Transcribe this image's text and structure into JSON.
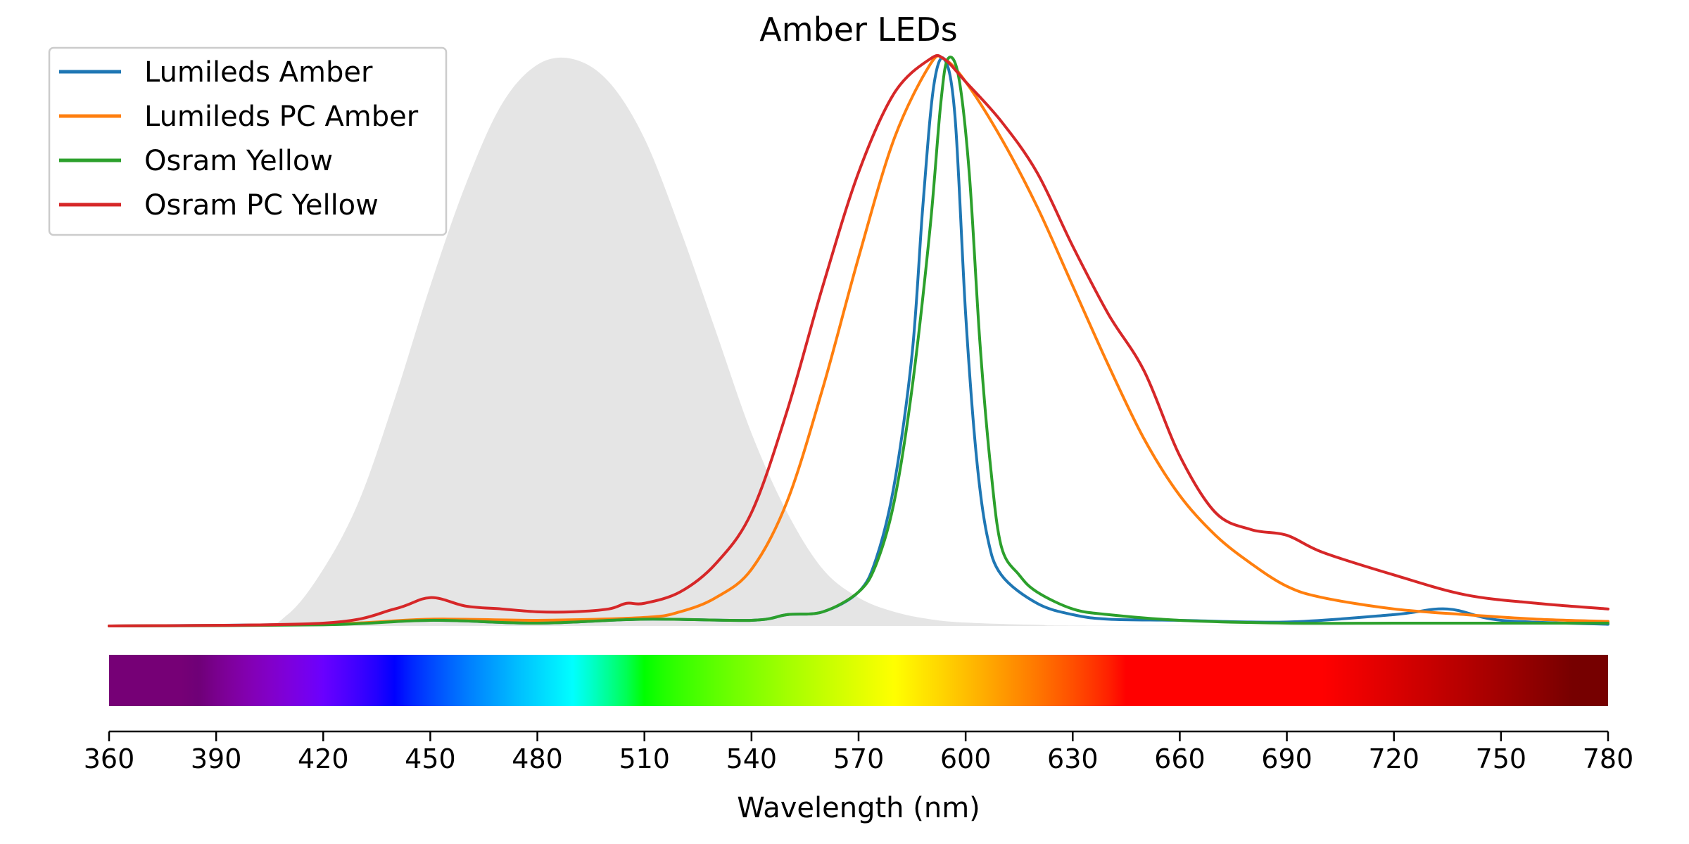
{
  "chart_data": {
    "type": "line",
    "title": "Amber LEDs",
    "xlabel": "Wavelength (nm)",
    "ylabel": "",
    "xlim": [
      360,
      780
    ],
    "ylim": [
      0,
      1
    ],
    "xticks": [
      360,
      390,
      420,
      450,
      480,
      510,
      540,
      570,
      600,
      630,
      660,
      690,
      720,
      750,
      780
    ],
    "grid": false,
    "legend_position": "top-left",
    "background_area": {
      "color": "#e5e5e5",
      "x": [
        360,
        400,
        410,
        420,
        430,
        440,
        450,
        460,
        470,
        480,
        490,
        500,
        510,
        520,
        530,
        540,
        550,
        560,
        570,
        580,
        590,
        600,
        620,
        640,
        780
      ],
      "values": [
        0.0,
        0.0,
        0.02,
        0.1,
        0.22,
        0.4,
        0.6,
        0.78,
        0.92,
        0.99,
        1.0,
        0.96,
        0.86,
        0.7,
        0.52,
        0.34,
        0.2,
        0.1,
        0.05,
        0.025,
        0.012,
        0.006,
        0.002,
        0.0005,
        0.0
      ]
    },
    "series": [
      {
        "name": "Lumileds Amber",
        "color": "#1f77b4",
        "x": [
          360,
          420,
          450,
          480,
          510,
          540,
          550,
          560,
          570,
          575,
          580,
          585,
          588,
          591,
          594,
          597,
          600,
          603,
          606,
          610,
          620,
          630,
          640,
          660,
          690,
          720,
          735,
          750,
          780
        ],
        "values": [
          0.0,
          0.003,
          0.01,
          0.005,
          0.012,
          0.01,
          0.02,
          0.025,
          0.06,
          0.12,
          0.25,
          0.48,
          0.74,
          0.95,
          1.0,
          0.9,
          0.55,
          0.3,
          0.16,
          0.09,
          0.04,
          0.02,
          0.012,
          0.01,
          0.007,
          0.02,
          0.03,
          0.01,
          0.003
        ]
      },
      {
        "name": "Lumileds PC Amber",
        "color": "#ff7f0e",
        "x": [
          360,
          420,
          450,
          480,
          510,
          520,
          530,
          540,
          550,
          560,
          570,
          580,
          590,
          594,
          600,
          610,
          620,
          630,
          640,
          650,
          660,
          670,
          680,
          690,
          700,
          720,
          740,
          760,
          780
        ],
        "values": [
          0.0,
          0.003,
          0.012,
          0.01,
          0.015,
          0.025,
          0.05,
          0.1,
          0.22,
          0.42,
          0.65,
          0.86,
          0.99,
          1.0,
          0.96,
          0.86,
          0.74,
          0.6,
          0.46,
          0.33,
          0.23,
          0.16,
          0.11,
          0.07,
          0.05,
          0.03,
          0.02,
          0.012,
          0.008
        ]
      },
      {
        "name": "Osram Yellow",
        "color": "#2ca02c",
        "x": [
          360,
          420,
          450,
          480,
          510,
          540,
          550,
          560,
          570,
          575,
          580,
          585,
          590,
          593,
          595,
          598,
          601,
          604,
          607,
          610,
          615,
          620,
          630,
          640,
          660,
          690,
          720,
          750,
          780
        ],
        "values": [
          0.0,
          0.002,
          0.01,
          0.005,
          0.012,
          0.01,
          0.02,
          0.025,
          0.06,
          0.11,
          0.22,
          0.42,
          0.7,
          0.92,
          1.0,
          0.97,
          0.8,
          0.5,
          0.28,
          0.14,
          0.09,
          0.06,
          0.03,
          0.02,
          0.01,
          0.005,
          0.005,
          0.005,
          0.005
        ]
      },
      {
        "name": "Osram PC Yellow",
        "color": "#d62728",
        "x": [
          360,
          420,
          440,
          450,
          460,
          470,
          480,
          490,
          500,
          505,
          510,
          520,
          530,
          540,
          550,
          560,
          570,
          580,
          590,
          594,
          600,
          610,
          620,
          630,
          640,
          650,
          660,
          670,
          680,
          690,
          700,
          720,
          740,
          760,
          780
        ],
        "values": [
          0.0,
          0.005,
          0.03,
          0.05,
          0.035,
          0.03,
          0.025,
          0.025,
          0.03,
          0.04,
          0.04,
          0.06,
          0.11,
          0.2,
          0.38,
          0.6,
          0.8,
          0.94,
          1.0,
          1.0,
          0.96,
          0.89,
          0.8,
          0.67,
          0.55,
          0.45,
          0.3,
          0.2,
          0.17,
          0.16,
          0.13,
          0.09,
          0.055,
          0.04,
          0.03
        ]
      }
    ]
  }
}
